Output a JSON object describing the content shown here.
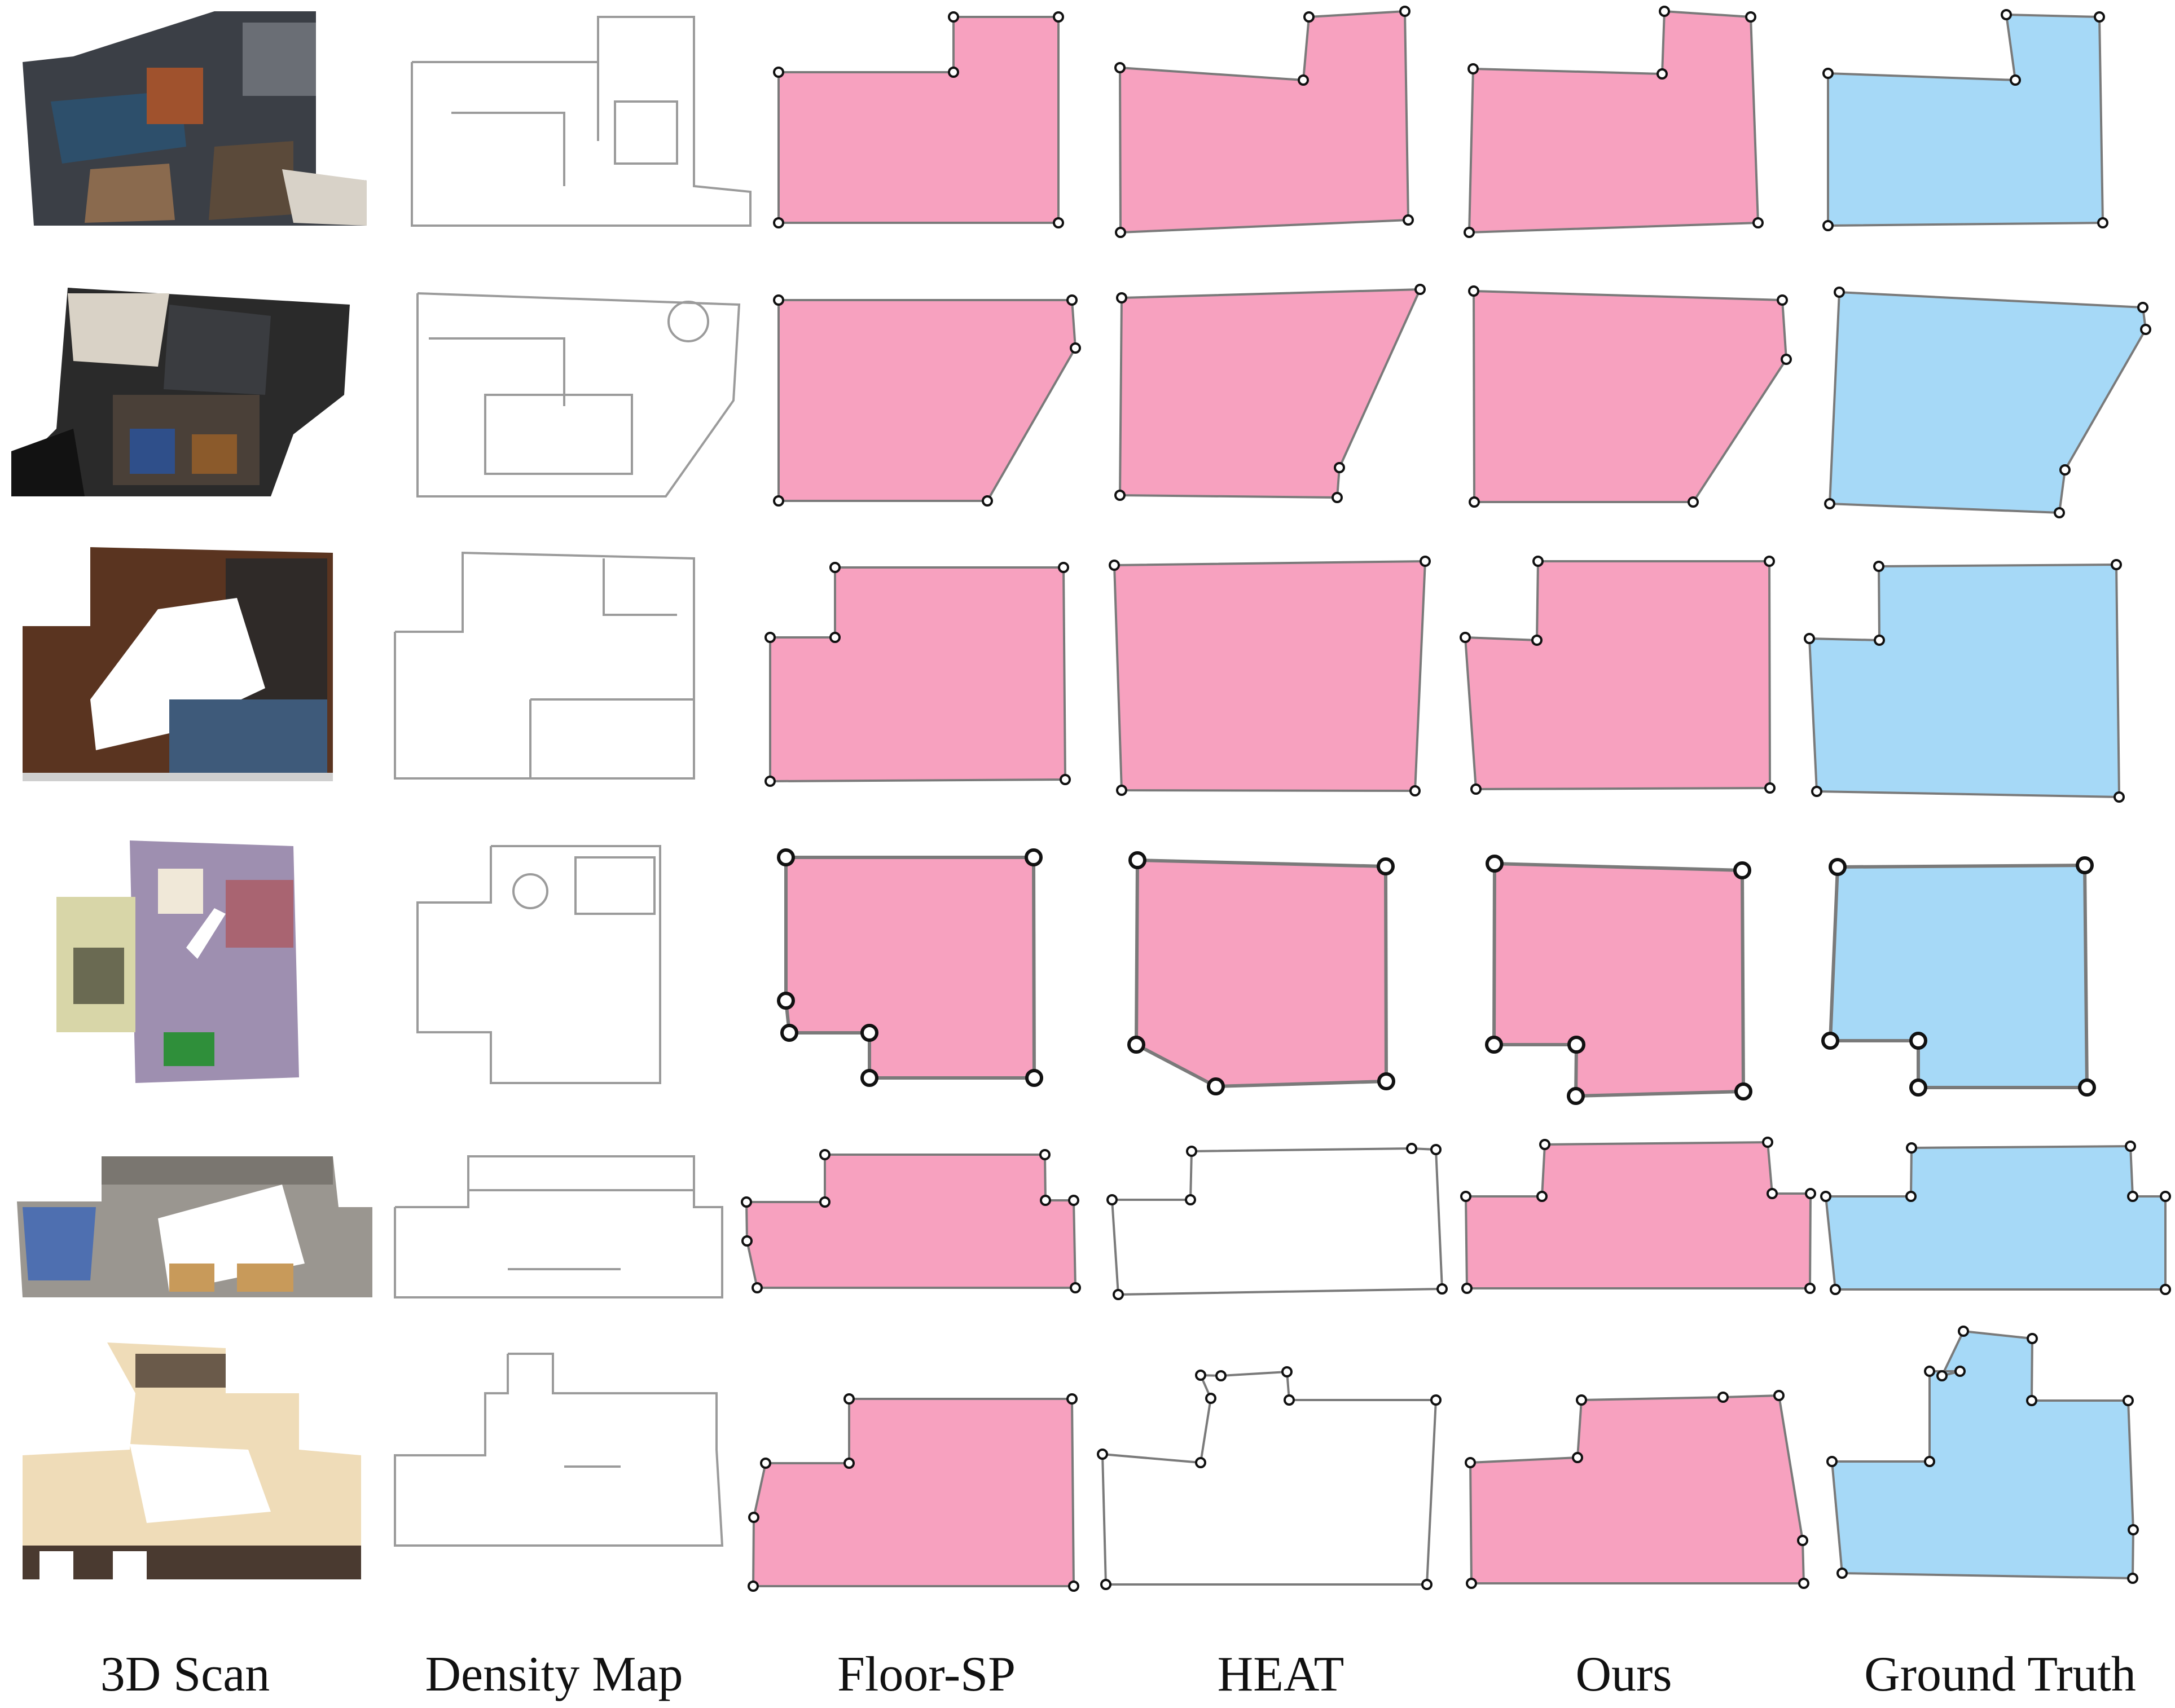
{
  "figure": {
    "columns": [
      {
        "key": "scan",
        "label": "3D Scan"
      },
      {
        "key": "density",
        "label": "Density Map"
      },
      {
        "key": "floorsp",
        "label": "Floor-SP"
      },
      {
        "key": "heat",
        "label": "HEAT"
      },
      {
        "key": "ours",
        "label": "Ours"
      },
      {
        "key": "gt",
        "label": "Ground Truth"
      }
    ],
    "colors": {
      "prediction_fill": "#F7A1BF",
      "ground_truth_fill": "#A6D9F7",
      "edge": "#7a7a7a",
      "vertex_fill": "#ffffff",
      "vertex_stroke": "#111111",
      "empty_fill": "#ffffff"
    },
    "rows": [
      {
        "index": 1
      },
      {
        "index": 2
      },
      {
        "index": 3
      },
      {
        "index": 4
      },
      {
        "index": 5
      },
      {
        "index": 6
      }
    ]
  }
}
